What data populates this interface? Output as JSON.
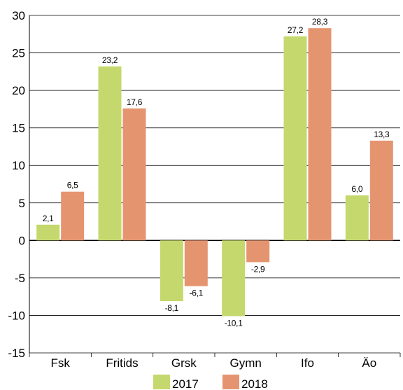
{
  "chart_data": {
    "type": "bar",
    "categories": [
      "Fsk",
      "Fritids",
      "Grsk",
      "Gymn",
      "Ifo",
      "Äo"
    ],
    "series": [
      {
        "name": "2017",
        "color": "#c5d86d",
        "values": [
          2.1,
          23.2,
          -8.1,
          -10.1,
          27.2,
          6.0
        ],
        "labels": [
          "2,1",
          "23,2",
          "-8,1",
          "-10,1",
          "27,2",
          "6,0"
        ]
      },
      {
        "name": "2018",
        "color": "#e59470",
        "values": [
          6.5,
          17.6,
          -6.1,
          -2.9,
          28.3,
          13.3
        ],
        "labels": [
          "6,5",
          "17,6",
          "-6,1",
          "-2,9",
          "28,3",
          "13,3"
        ]
      }
    ],
    "ylim": [
      -15,
      30
    ],
    "yticks": [
      30,
      25,
      20,
      15,
      10,
      5,
      0,
      -5,
      -10,
      -15
    ],
    "ytick_labels": [
      "30",
      "25",
      "20",
      "15",
      "10",
      "5",
      "0",
      "-5",
      "-10",
      "-15"
    ],
    "grid": "horizontal",
    "legend_position": "bottom-center"
  }
}
